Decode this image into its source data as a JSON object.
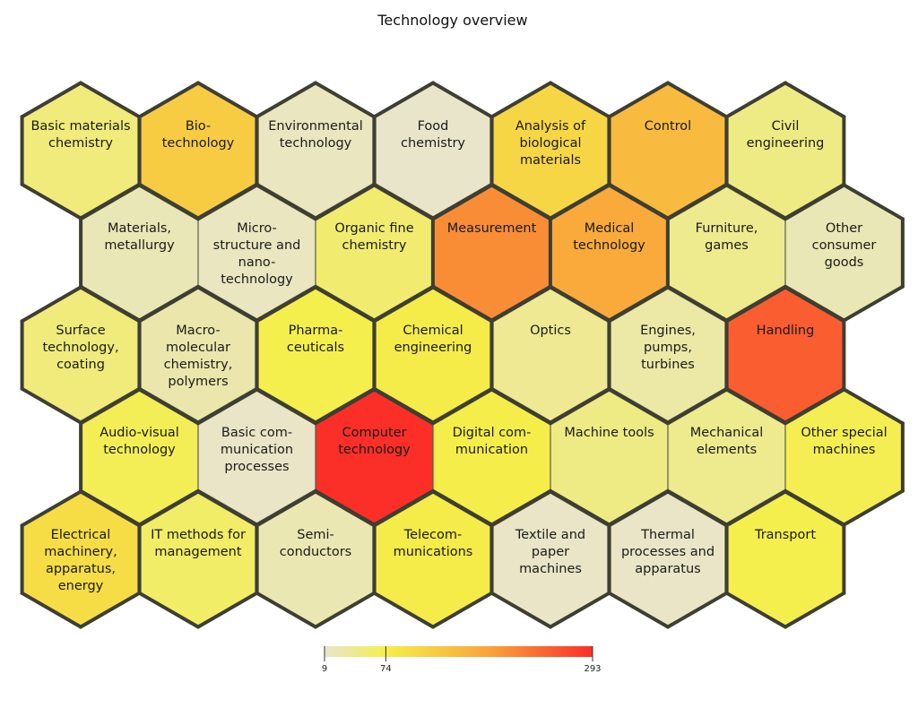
{
  "chart_data": {
    "type": "heatmap",
    "title": "Technology overview",
    "color_scale": {
      "min": 9,
      "max": 293,
      "stops": [
        {
          "value": 9,
          "color": "#e8e5cc"
        },
        {
          "value": 74,
          "color": "#f5ef4a"
        },
        {
          "value": 183,
          "color": "#f9a43a"
        },
        {
          "value": 293,
          "color": "#fb2f28"
        }
      ],
      "tick_labels": [
        "9",
        "74",
        "293"
      ],
      "tick_values": [
        9,
        74,
        293
      ]
    },
    "cells": [
      {
        "label": "Basic materials\nchemistry",
        "value": 50,
        "row": 0,
        "col": 0
      },
      {
        "label": "Bio-\ntechnology",
        "value": 125,
        "row": 0,
        "col": 1
      },
      {
        "label": "Environmental\ntechnology",
        "value": 15,
        "row": 0,
        "col": 2
      },
      {
        "label": "Food\nchemistry",
        "value": 10,
        "row": 0,
        "col": 3
      },
      {
        "label": "Analysis of\nbiological\nmaterials",
        "value": 110,
        "row": 0,
        "col": 4
      },
      {
        "label": "Control",
        "value": 150,
        "row": 0,
        "col": 5
      },
      {
        "label": "Civil\nengineering",
        "value": 45,
        "row": 0,
        "col": 6
      },
      {
        "label": "Materials,\nmetallurgy",
        "value": 20,
        "row": 1,
        "col": 0
      },
      {
        "label": "Micro-\nstructure and\nnano-\ntechnology",
        "value": 15,
        "row": 1,
        "col": 1
      },
      {
        "label": "Organic fine\nchemistry",
        "value": 55,
        "row": 1,
        "col": 2
      },
      {
        "label": "Measurement",
        "value": 205,
        "row": 1,
        "col": 3
      },
      {
        "label": "Medical\ntechnology",
        "value": 175,
        "row": 1,
        "col": 4
      },
      {
        "label": "Furniture,\ngames",
        "value": 40,
        "row": 1,
        "col": 5
      },
      {
        "label": "Other\nconsumer\ngoods",
        "value": 20,
        "row": 1,
        "col": 6
      },
      {
        "label": "Surface\ntechnology,\ncoating",
        "value": 50,
        "row": 2,
        "col": 0
      },
      {
        "label": "Macro-\nmolecular\nchemistry,\npolymers",
        "value": 25,
        "row": 2,
        "col": 1
      },
      {
        "label": "Pharma-\nceuticals",
        "value": 72,
        "row": 2,
        "col": 2
      },
      {
        "label": "Chemical\nengineering",
        "value": 80,
        "row": 2,
        "col": 3
      },
      {
        "label": "Optics",
        "value": 38,
        "row": 2,
        "col": 4
      },
      {
        "label": "Engines,\npumps,\nturbines",
        "value": 28,
        "row": 2,
        "col": 5
      },
      {
        "label": "Handling",
        "value": 250,
        "row": 2,
        "col": 6
      },
      {
        "label": "Audio-visual\ntechnology",
        "value": 68,
        "row": 3,
        "col": 0
      },
      {
        "label": "Basic com-\nmunication\nprocesses",
        "value": 12,
        "row": 3,
        "col": 1
      },
      {
        "label": "Computer\ntechnology",
        "value": 293,
        "row": 3,
        "col": 2
      },
      {
        "label": "Digital com-\nmunication",
        "value": 75,
        "row": 3,
        "col": 3
      },
      {
        "label": "Machine tools",
        "value": 45,
        "row": 3,
        "col": 4
      },
      {
        "label": "Mechanical\nelements",
        "value": 40,
        "row": 3,
        "col": 5
      },
      {
        "label": "Other special\nmachines",
        "value": 70,
        "row": 3,
        "col": 6
      },
      {
        "label": "Electrical\nmachinery,\napparatus,\nenergy",
        "value": 100,
        "row": 4,
        "col": 0
      },
      {
        "label": "IT methods for\nmanagement",
        "value": 60,
        "row": 4,
        "col": 1
      },
      {
        "label": "Semi-\nconductors",
        "value": 22,
        "row": 4,
        "col": 2
      },
      {
        "label": "Telecom-\nmunications",
        "value": 80,
        "row": 4,
        "col": 3
      },
      {
        "label": "Textile and\npaper\nmachines",
        "value": 12,
        "row": 4,
        "col": 4
      },
      {
        "label": "Thermal\nprocesses and\napparatus",
        "value": 12,
        "row": 4,
        "col": 5
      },
      {
        "label": "Transport",
        "value": 72,
        "row": 4,
        "col": 6
      }
    ],
    "group_boundaries": [
      {
        "edges": [
          "Basic materials chemistry|Bio-technology",
          "Surface technology, coating|Audio-visual technology",
          "Macro-molecular chemistry, polymers|Audio-visual technology",
          "Macro-molecular chemistry, polymers|Basic com-munication processes",
          "Pharma-ceuticals|Basic com-munication processes",
          "Pharma-ceuticals|Computer technology",
          "Chemical engineering|Computer technology",
          "Chemical engineering|Digital com-munication",
          "Organic fine chemistry|Measurement",
          "Chemical engineering|Measurement",
          "Chemical engineering|Optics",
          "Food chemistry|Analysis of biological materials",
          "Optics|Digital com-munication",
          "Optics|Machine tools",
          "Control|Civil engineering",
          "Medical technology|Furniture, games",
          "Medical technology|Engines, pumps, turbines",
          "Furniture, games|Engines, pumps, turbines",
          "Other consumer goods|Handling",
          "Engines, pumps, turbines|Handling",
          "Handling|Mechanical elements",
          "Handling|Other special machines",
          "Audio-visual technology|Electrical machinery, apparatus, energy",
          "Audio-visual technology|IT methods for management",
          "Digital com-munication|Telecom-munications",
          "Digital com-munication|Textile and paper machines",
          "Telecom-munications|Textile and paper machines",
          "Mechanical elements|Transport",
          "Other special machines|Transport",
          "Bio-technology|Materials, metallurgy",
          "Bio-technology|Micro-structure and nano-technology",
          "Bio-technology|Environmental technology",
          "Basic com-munication processes|Computer technology",
          "Computer technology|Digital com-munication",
          "Computer technology|Semi-conductors",
          "Computer technology|Telecom-munications",
          "Measurement|Medical technology"
        ]
      }
    ]
  }
}
